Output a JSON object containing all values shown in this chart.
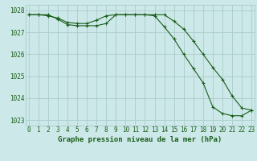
{
  "line1_x": [
    0,
    1,
    2,
    3,
    4,
    5,
    6,
    7,
    8,
    9,
    10,
    11,
    12,
    13,
    14,
    15,
    16,
    17,
    18,
    19,
    20,
    21,
    22,
    23
  ],
  "line1_y": [
    1027.8,
    1027.8,
    1027.75,
    1027.65,
    1027.45,
    1027.4,
    1027.4,
    1027.55,
    1027.75,
    1027.8,
    1027.8,
    1027.8,
    1027.8,
    1027.8,
    1027.8,
    1027.5,
    1027.15,
    1026.6,
    1026.0,
    1025.4,
    1024.85,
    1024.1,
    1023.55,
    1023.45
  ],
  "line2_x": [
    0,
    1,
    2,
    3,
    4,
    5,
    6,
    7,
    8,
    9,
    10,
    11,
    12,
    13,
    14,
    15,
    16,
    17,
    18,
    19,
    20,
    21,
    22,
    23
  ],
  "line2_y": [
    1027.8,
    1027.8,
    1027.8,
    1027.6,
    1027.35,
    1027.3,
    1027.3,
    1027.3,
    1027.4,
    1027.8,
    1027.8,
    1027.8,
    1027.8,
    1027.75,
    1027.25,
    1026.7,
    1026.0,
    1025.35,
    1024.7,
    1023.6,
    1023.3,
    1023.2,
    1023.2,
    1023.45
  ],
  "bg_color": "#cce8e8",
  "grid_color": "#aacccc",
  "line_color": "#1a5e1a",
  "title": "Graphe pression niveau de la mer (hPa)",
  "ylim": [
    1022.75,
    1028.25
  ],
  "xlim": [
    -0.3,
    23.3
  ],
  "yticks": [
    1023,
    1024,
    1025,
    1026,
    1027,
    1028
  ],
  "xticks": [
    0,
    1,
    2,
    3,
    4,
    5,
    6,
    7,
    8,
    9,
    10,
    11,
    12,
    13,
    14,
    15,
    16,
    17,
    18,
    19,
    20,
    21,
    22,
    23
  ],
  "marker": "+",
  "markersize": 3.5,
  "linewidth": 0.8,
  "tick_fontsize": 5.5,
  "title_fontsize": 6.5
}
